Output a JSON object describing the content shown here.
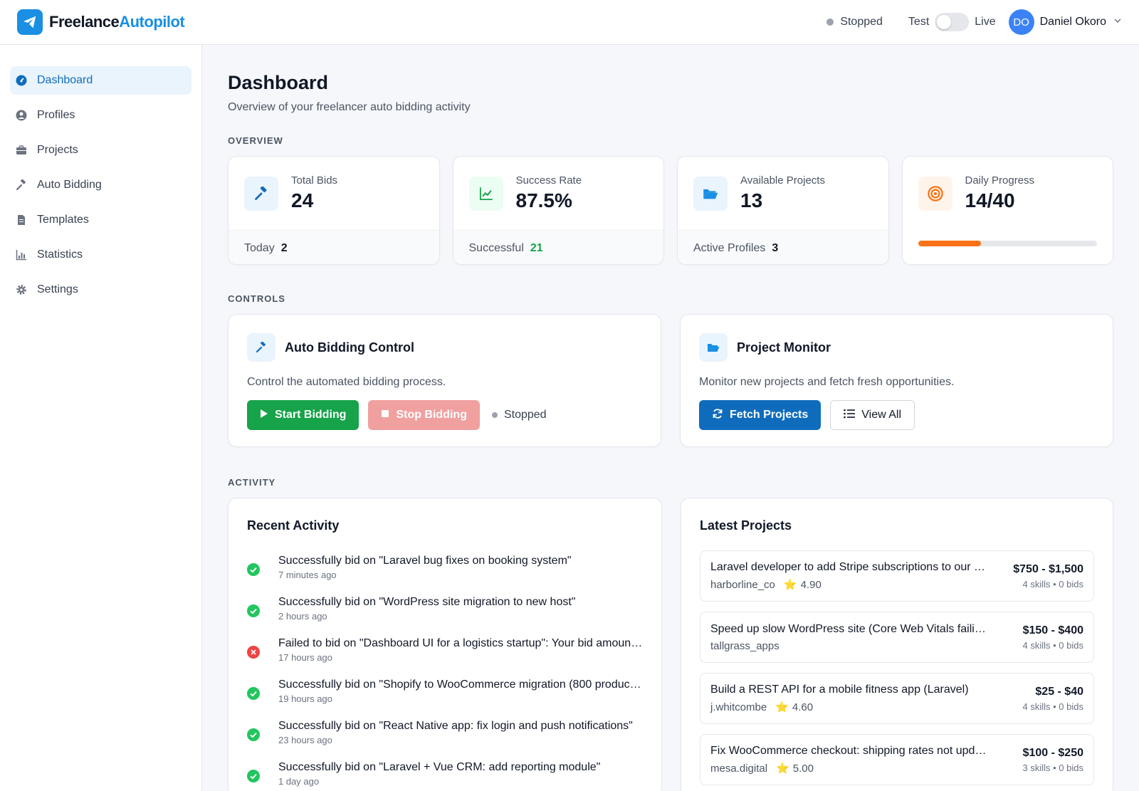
{
  "app": {
    "brand_part1": "Freelance",
    "brand_part2": "Autopilot"
  },
  "header": {
    "status": "Stopped",
    "mode_test": "Test",
    "mode_live": "Live",
    "user_initials": "DO",
    "user_name": "Daniel Okoro"
  },
  "sidebar": {
    "items": [
      {
        "label": "Dashboard",
        "icon": "dashboard-icon"
      },
      {
        "label": "Profiles",
        "icon": "user-icon"
      },
      {
        "label": "Projects",
        "icon": "briefcase-icon"
      },
      {
        "label": "Auto Bidding",
        "icon": "gavel-icon"
      },
      {
        "label": "Templates",
        "icon": "file-icon"
      },
      {
        "label": "Statistics",
        "icon": "chart-icon"
      },
      {
        "label": "Settings",
        "icon": "gear-icon"
      }
    ]
  },
  "page": {
    "title": "Dashboard",
    "subtitle": "Overview of your freelancer auto bidding activity"
  },
  "sections": {
    "overview": "OVERVIEW",
    "controls": "CONTROLS",
    "activity": "ACTIVITY"
  },
  "stats": [
    {
      "label": "Total Bids",
      "value": "24",
      "foot_label": "Today",
      "foot_value": "2"
    },
    {
      "label": "Success Rate",
      "value": "87.5%",
      "foot_label": "Successful",
      "foot_value": "21"
    },
    {
      "label": "Available Projects",
      "value": "13",
      "foot_label": "Active Profiles",
      "foot_value": "3"
    },
    {
      "label": "Daily Progress",
      "value": "14/40",
      "progress": 0.35
    }
  ],
  "colors": {
    "accent": "#0f6cbd",
    "success": "#16a34a",
    "danger": "#dc2626",
    "progress": "#f97316"
  },
  "auto_bidding": {
    "title": "Auto Bidding Control",
    "desc": "Control the automated bidding process.",
    "start_label": "Start Bidding",
    "stop_label": "Stop Bidding",
    "status": "Stopped"
  },
  "project_monitor": {
    "title": "Project Monitor",
    "desc": "Monitor new projects and fetch fresh opportunities.",
    "fetch_label": "Fetch Projects",
    "view_label": "View All"
  },
  "recent_activity": {
    "title": "Recent Activity",
    "items": [
      {
        "text": "Successfully bid on \"Laravel bug fixes on booking system\"",
        "time": "7 minutes ago",
        "status": "success"
      },
      {
        "text": "Successfully bid on \"WordPress site migration to new host\"",
        "time": "2 hours ago",
        "status": "success"
      },
      {
        "text": "Failed to bid on \"Dashboard UI for a logistics startup\": Your bid amount is too low",
        "time": "17 hours ago",
        "status": "failed"
      },
      {
        "text": "Successfully bid on \"Shopify to WooCommerce migration (800 products)\"",
        "time": "19 hours ago",
        "status": "success"
      },
      {
        "text": "Successfully bid on \"React Native app: fix login and push notifications\"",
        "time": "23 hours ago",
        "status": "success"
      },
      {
        "text": "Successfully bid on \"Laravel + Vue CRM: add reporting module\"",
        "time": "1 day ago",
        "status": "success"
      }
    ]
  },
  "latest_projects": {
    "title": "Latest Projects",
    "items": [
      {
        "title": "Laravel developer to add Stripe subscriptions to our SaaS",
        "owner": "harborline_co",
        "rating": "4.90",
        "budget": "$750 - $1,500",
        "meta": "4 skills • 0 bids"
      },
      {
        "title": "Speed up slow WordPress site (Core Web Vitals failing)",
        "owner": "tallgrass_apps",
        "rating": "",
        "budget": "$150 - $400",
        "meta": "4 skills • 0 bids"
      },
      {
        "title": "Build a REST API for a mobile fitness app (Laravel)",
        "owner": "j.whitcombe",
        "rating": "4.60",
        "budget": "$25 - $40",
        "meta": "4 skills • 0 bids"
      },
      {
        "title": "Fix WooCommerce checkout: shipping rates not updating",
        "owner": "mesa.digital",
        "rating": "5.00",
        "budget": "$100 - $250",
        "meta": "3 skills • 0 bids"
      }
    ]
  }
}
